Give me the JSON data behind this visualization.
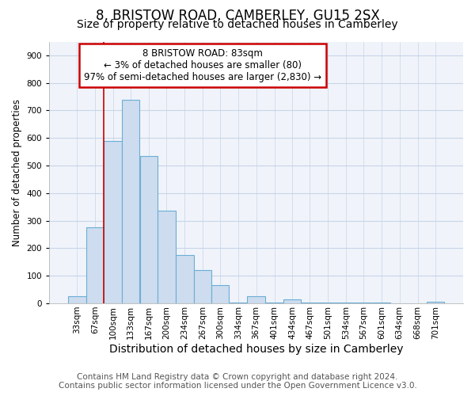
{
  "title_line1": "8, BRISTOW ROAD, CAMBERLEY, GU15 2SX",
  "title_line2": "Size of property relative to detached houses in Camberley",
  "xlabel": "Distribution of detached houses by size in Camberley",
  "ylabel": "Number of detached properties",
  "footer_line1": "Contains HM Land Registry data © Crown copyright and database right 2024.",
  "footer_line2": "Contains public sector information licensed under the Open Government Licence v3.0.",
  "bar_labels": [
    "33sqm",
    "67sqm",
    "100sqm",
    "133sqm",
    "167sqm",
    "200sqm",
    "234sqm",
    "267sqm",
    "300sqm",
    "334sqm",
    "367sqm",
    "401sqm",
    "434sqm",
    "467sqm",
    "501sqm",
    "534sqm",
    "567sqm",
    "601sqm",
    "634sqm",
    "668sqm",
    "701sqm"
  ],
  "bar_values": [
    25,
    275,
    590,
    740,
    535,
    335,
    175,
    120,
    65,
    2,
    25,
    2,
    15,
    2,
    2,
    2,
    2,
    2,
    0,
    0,
    5
  ],
  "bar_color": "#cddcee",
  "bar_edge_color": "#6baed6",
  "annotation_title": "8 BRISTOW ROAD: 83sqm",
  "annotation_line2": "← 3% of detached houses are smaller (80)",
  "annotation_line3": "97% of semi-detached houses are larger (2,830) →",
  "annotation_box_bg": "#ffffff",
  "annotation_box_edge": "#cc0000",
  "vline_color": "#cc0000",
  "vline_x": 83,
  "ylim": [
    0,
    950
  ],
  "yticks": [
    0,
    100,
    200,
    300,
    400,
    500,
    600,
    700,
    800,
    900
  ],
  "background_color": "#ffffff",
  "plot_bg_color": "#f0f4fa",
  "grid_color": "#c8d4e8",
  "title1_fontsize": 12,
  "title2_fontsize": 10,
  "xlabel_fontsize": 10,
  "ylabel_fontsize": 8.5,
  "tick_fontsize": 7.5,
  "annotation_fontsize": 8.5,
  "footer_fontsize": 7.5
}
